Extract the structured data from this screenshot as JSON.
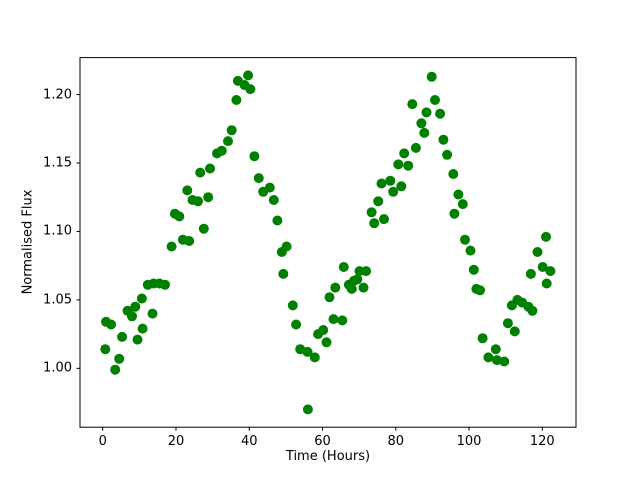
{
  "figure": {
    "background_color": "#ffffff",
    "spine_color": "#000000",
    "tick_color": "#000000"
  },
  "chart_data": {
    "type": "scatter",
    "title": "",
    "xlabel": "Time (Hours)",
    "ylabel": "Normalised Flux",
    "marker": "o",
    "marker_color": "#008000",
    "grid": false,
    "legend_position": "none",
    "xlim": [
      -6.2,
      129.2
    ],
    "ylim": [
      0.957,
      1.227
    ],
    "xticks": [
      0,
      20,
      40,
      60,
      80,
      100,
      120
    ],
    "yticks": [
      1.0,
      1.05,
      1.1,
      1.15,
      1.2
    ],
    "x": [
      0.7,
      0.9,
      2.3,
      3.4,
      4.5,
      5.3,
      6.8,
      8.0,
      8.9,
      9.5,
      10.7,
      10.9,
      12.3,
      13.6,
      13.9,
      15.5,
      17.0,
      18.8,
      19.7,
      20.9,
      21.9,
      23.1,
      23.6,
      24.5,
      26.0,
      26.6,
      27.6,
      28.8,
      29.3,
      31.2,
      32.5,
      34.2,
      35.2,
      36.5,
      36.9,
      38.7,
      39.7,
      40.3,
      41.4,
      42.6,
      43.8,
      45.6,
      46.7,
      47.7,
      48.9,
      49.3,
      50.2,
      51.9,
      52.8,
      53.9,
      55.9,
      56.0,
      57.9,
      58.8,
      60.2,
      61.1,
      61.9,
      63.0,
      63.5,
      65.4,
      65.8,
      67.2,
      68.0,
      68.6,
      69.5,
      70.1,
      71.2,
      71.9,
      73.4,
      74.1,
      75.2,
      76.1,
      76.8,
      78.5,
      79.3,
      80.7,
      81.5,
      82.3,
      83.4,
      84.5,
      85.5,
      87.0,
      87.8,
      88.4,
      89.8,
      90.7,
      92.1,
      93.0,
      94.0,
      95.7,
      96.0,
      97.1,
      98.3,
      98.9,
      100.4,
      101.3,
      102.0,
      103.0,
      103.7,
      105.3,
      107.3,
      107.6,
      109.6,
      110.6,
      111.7,
      112.5,
      113.2,
      114.5,
      116.2,
      116.9,
      117.3,
      118.7,
      120.1,
      121.0,
      121.2,
      122.2
    ],
    "y": [
      1.014,
      1.034,
      1.032,
      0.999,
      1.007,
      1.023,
      1.042,
      1.038,
      1.045,
      1.021,
      1.051,
      1.029,
      1.061,
      1.04,
      1.062,
      1.062,
      1.061,
      1.089,
      1.113,
      1.111,
      1.094,
      1.13,
      1.093,
      1.123,
      1.122,
      1.143,
      1.102,
      1.125,
      1.146,
      1.157,
      1.159,
      1.166,
      1.174,
      1.196,
      1.21,
      1.207,
      1.214,
      1.204,
      1.155,
      1.139,
      1.129,
      1.132,
      1.123,
      1.108,
      1.085,
      1.069,
      1.089,
      1.046,
      1.032,
      1.014,
      1.012,
      0.97,
      1.008,
      1.025,
      1.028,
      1.019,
      1.052,
      1.036,
      1.059,
      1.035,
      1.074,
      1.061,
      1.058,
      1.064,
      1.065,
      1.071,
      1.059,
      1.071,
      1.114,
      1.106,
      1.122,
      1.135,
      1.109,
      1.137,
      1.129,
      1.149,
      1.133,
      1.157,
      1.148,
      1.193,
      1.161,
      1.179,
      1.172,
      1.187,
      1.213,
      1.196,
      1.186,
      1.167,
      1.156,
      1.142,
      1.113,
      1.127,
      1.12,
      1.094,
      1.086,
      1.072,
      1.058,
      1.057,
      1.022,
      1.008,
      1.014,
      1.006,
      1.005,
      1.033,
      1.046,
      1.027,
      1.05,
      1.048,
      1.045,
      1.069,
      1.042,
      1.085,
      1.074,
      1.096,
      1.062,
      1.071
    ]
  }
}
